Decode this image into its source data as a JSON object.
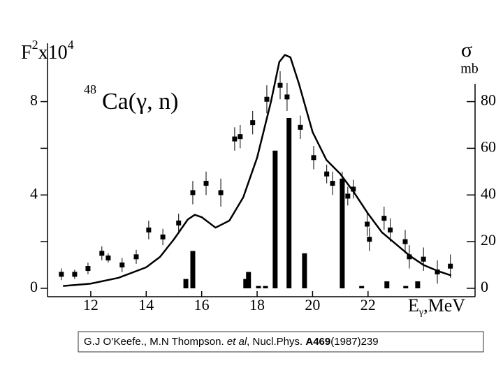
{
  "chart_data": {
    "type": "combo",
    "ylabel": {
      "base": "F",
      "sup": "2",
      "mult": "x10",
      "exp": "4"
    },
    "y2label": {
      "symbol": "σ",
      "unit": "mb"
    },
    "annotation": {
      "mass": "48",
      "reaction": "Ca(γ, n)"
    },
    "xlabel": {
      "base": "E",
      "sub": "γ",
      "unit": ",MeV"
    },
    "caption": [
      "G.J O’Keefe., M.N Thompson. ",
      "et al",
      ", Nucl.Phys. ",
      "A469",
      "(1987)239"
    ],
    "color": "#000000",
    "xlim": [
      10.44,
      25.86
    ],
    "xticks": [
      12,
      14,
      16,
      18,
      20,
      22
    ],
    "ylim": [
      -0.36,
      10.5
    ],
    "yticks": [
      0,
      4,
      8
    ],
    "yminor_ticks": [
      2,
      6
    ],
    "y2lim": [
      -3.6,
      105
    ],
    "y2ticks": [
      0,
      20,
      40,
      60,
      80
    ],
    "points": {
      "x": [
        10.94,
        11.42,
        11.9,
        12.4,
        12.63,
        13.13,
        13.64,
        14.09,
        14.6,
        15.17,
        15.68,
        16.16,
        16.69,
        17.19,
        17.39,
        17.84,
        18.35,
        18.83,
        19.08,
        19.56,
        20.04,
        20.51,
        20.72,
        21.07,
        21.27,
        21.47,
        21.97,
        22.05,
        22.58,
        22.8,
        23.34,
        23.49,
        24.0,
        24.5,
        24.97
      ],
      "y": [
        0.6,
        0.6,
        0.85,
        1.5,
        1.3,
        1.0,
        1.35,
        2.5,
        2.2,
        2.8,
        4.1,
        4.5,
        4.1,
        6.4,
        6.5,
        7.1,
        8.1,
        8.7,
        8.2,
        6.9,
        5.6,
        4.9,
        4.5,
        4.5,
        3.95,
        4.25,
        2.75,
        2.1,
        3.0,
        2.5,
        2.0,
        1.35,
        1.25,
        0.7,
        0.95
      ],
      "err": [
        0.25,
        0.2,
        0.25,
        0.3,
        0.2,
        0.3,
        0.3,
        0.4,
        0.35,
        0.4,
        0.5,
        0.5,
        0.6,
        0.5,
        0.5,
        0.5,
        0.6,
        0.6,
        0.6,
        0.5,
        0.5,
        0.4,
        0.5,
        0.5,
        0.4,
        0.4,
        0.5,
        0.5,
        0.5,
        0.5,
        0.5,
        0.5,
        0.5,
        0.5,
        0.5
      ]
    },
    "bars": {
      "axis": "y2",
      "x": [
        15.43,
        15.68,
        17.59,
        17.69,
        18.05,
        18.3,
        18.65,
        19.15,
        19.71,
        21.07,
        21.77,
        22.68,
        23.36,
        23.79
      ],
      "values": [
        4,
        16,
        4,
        7,
        1,
        1,
        59,
        73,
        15,
        47,
        1,
        3,
        1,
        3
      ]
    },
    "curve": {
      "x": [
        11.0,
        12,
        13,
        14,
        14.5,
        15,
        15.5,
        15.75,
        16,
        16.5,
        17,
        17.5,
        18,
        18.5,
        18.8,
        19,
        19.2,
        19.5,
        20,
        20.5,
        21,
        21.5,
        22,
        22.5,
        23,
        23.5,
        24,
        24.5,
        25
      ],
      "y": [
        0.1,
        0.2,
        0.45,
        0.9,
        1.35,
        2.1,
        2.95,
        3.15,
        3.05,
        2.6,
        2.9,
        3.9,
        5.6,
        8.0,
        9.7,
        10.0,
        9.9,
        8.8,
        6.7,
        5.5,
        4.9,
        4.1,
        3.2,
        2.4,
        1.9,
        1.4,
        1.0,
        0.75,
        0.55
      ]
    }
  }
}
